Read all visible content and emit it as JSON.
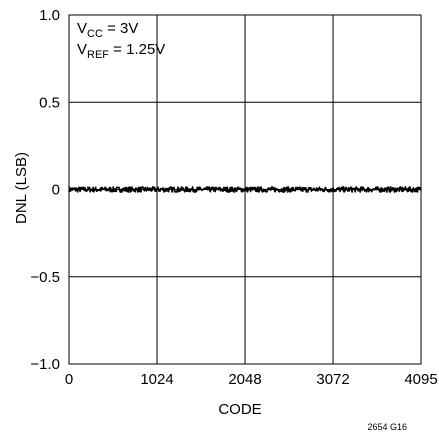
{
  "chart_data": {
    "type": "line",
    "title": "",
    "xlabel": "CODE",
    "ylabel": "DNL (LSB)",
    "xlim": [
      0,
      4095
    ],
    "ylim": [
      -1.0,
      1.0
    ],
    "xticks": [
      0,
      1024,
      2048,
      3072,
      4095
    ],
    "xtick_labels": [
      "0",
      "1024",
      "2048",
      "3072",
      "4095"
    ],
    "yticks": [
      1.0,
      0.5,
      0,
      -0.5,
      -1.0
    ],
    "ytick_labels": [
      "1.0",
      "0.5",
      "0",
      "−0.5",
      "−1.0"
    ],
    "grid": true,
    "annotations": [
      {
        "main": "V",
        "sub": "CC",
        "rest": " = 3V"
      },
      {
        "main": "V",
        "sub": "REF",
        "rest": " = 1.25V"
      }
    ],
    "series": [
      {
        "x": [
          0,
          4095
        ],
        "values": [
          0,
          0
        ],
        "noise_amplitude": 0.015
      }
    ],
    "colors": {
      "line": "#000000",
      "grid": "#000000",
      "background": "#ffffff"
    }
  },
  "figure_code": "2654 G16"
}
